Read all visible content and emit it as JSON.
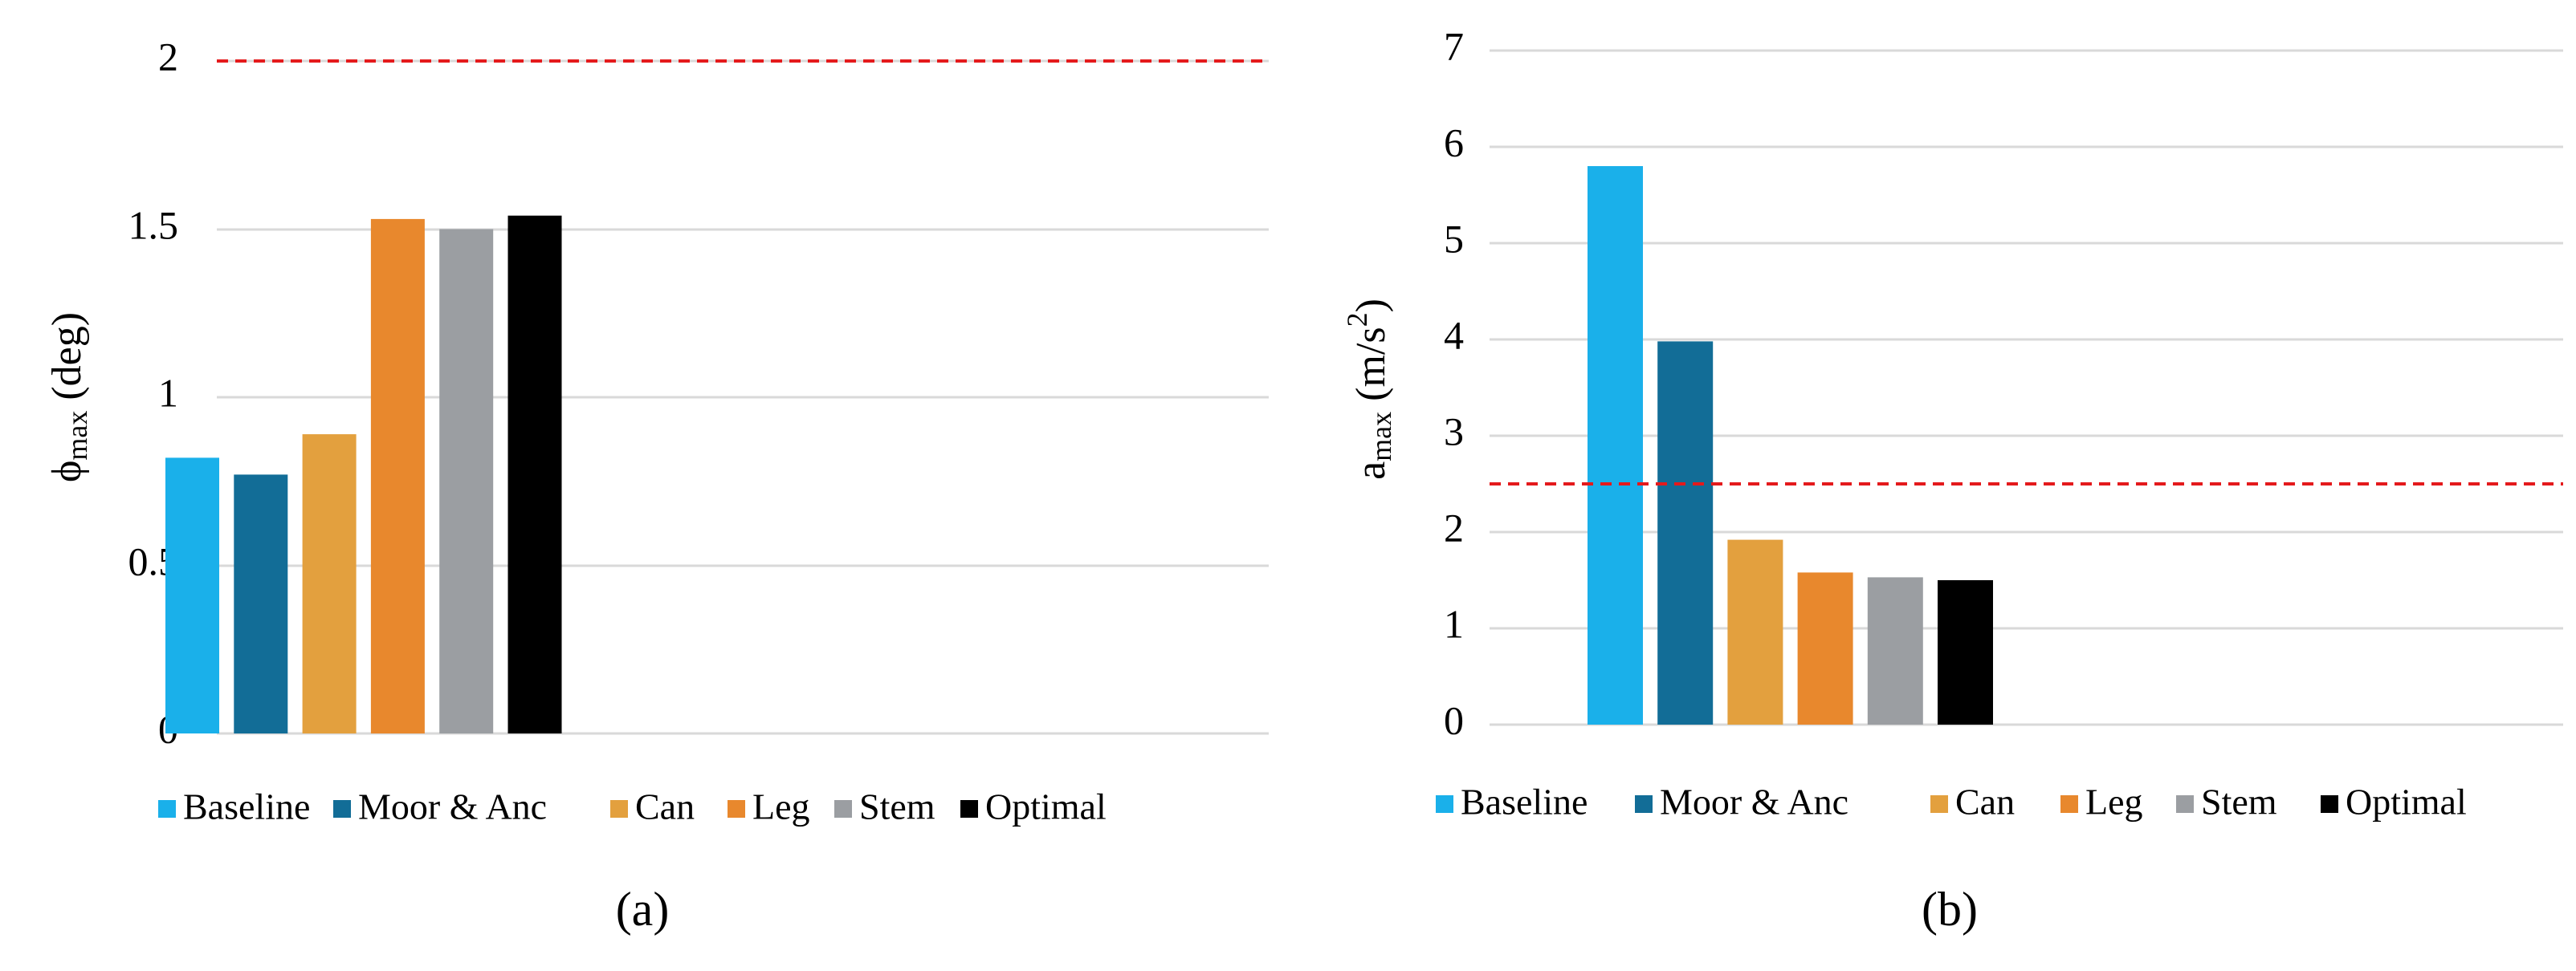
{
  "colors": {
    "Baseline": "#1AB0EA",
    "Moor & Anc": "#126D97",
    "Can": "#E3A03E",
    "Leg": "#E8882D",
    "Stem": "#9B9EA2",
    "Optimal": "#000000",
    "threshold": "#E41A1C",
    "grid": "#D9D9D9",
    "text": "#000000"
  },
  "chart_data": [
    {
      "type": "bar",
      "panel_label": "(a)",
      "title": "",
      "xlabel": "",
      "ylabel": "ϕmax (deg)",
      "ylabel_main": "ϕ",
      "ylabel_sub": "max",
      "ylabel_tail": " (deg)",
      "categories": [
        "Baseline",
        "Moor & Anc",
        "Can",
        "Leg",
        "Stem",
        "Optimal"
      ],
      "values": [
        0.82,
        0.77,
        0.89,
        1.53,
        1.5,
        1.54
      ],
      "ylim": [
        0,
        2
      ],
      "yticks": [
        0,
        0.5,
        1,
        1.5,
        2
      ],
      "ytick_labels": [
        "0",
        "0.5",
        "1",
        "1.5",
        "2"
      ],
      "threshold": 2,
      "grid": true,
      "legend": [
        "Baseline",
        "Moor & Anc",
        "Can",
        "Leg",
        "Stem",
        "Optimal"
      ],
      "legend_position": "bottom"
    },
    {
      "type": "bar",
      "panel_label": "(b)",
      "title": "",
      "xlabel": "",
      "ylabel": "amax (m/s2)",
      "ylabel_main": "a",
      "ylabel_sub": "max",
      "ylabel_mid": " (m/s",
      "ylabel_sup": "2",
      "ylabel_tail": ")",
      "categories": [
        "Baseline",
        "Moor & Anc",
        "Can",
        "Leg",
        "Stem",
        "Optimal"
      ],
      "values": [
        5.8,
        3.98,
        1.92,
        1.58,
        1.53,
        1.5
      ],
      "ylim": [
        0,
        7
      ],
      "yticks": [
        0,
        1,
        2,
        3,
        4,
        5,
        6,
        7
      ],
      "ytick_labels": [
        "0",
        "1",
        "2",
        "3",
        "4",
        "5",
        "6",
        "7"
      ],
      "threshold": 2.5,
      "grid": true,
      "legend": [
        "Baseline",
        "Moor & Anc",
        "Can",
        "Leg",
        "Stem",
        "Optimal"
      ],
      "legend_position": "bottom"
    }
  ]
}
